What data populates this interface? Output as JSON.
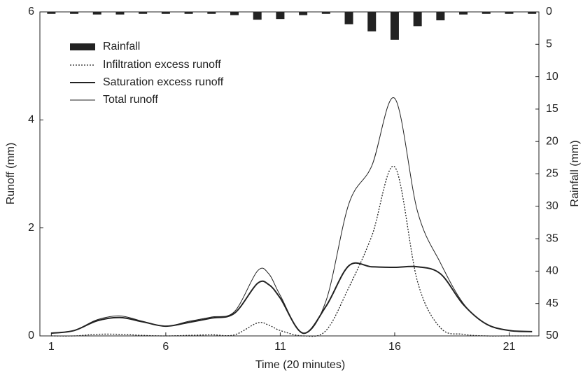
{
  "chart_data": {
    "type": "line",
    "xlabel": "Time (20 minutes)",
    "ylabel": "Runoff (mm)",
    "y2label": "Rainfall (mm)",
    "xlim": [
      0.5,
      22.3
    ],
    "xticks": [
      1,
      6,
      11,
      16,
      21
    ],
    "ylim": [
      0,
      6
    ],
    "yticks": [
      0,
      2,
      4,
      6
    ],
    "y2lim": [
      50,
      0
    ],
    "y2ticks": [
      0,
      5,
      10,
      15,
      20,
      25,
      30,
      35,
      40,
      45,
      50
    ],
    "x": [
      1,
      2,
      3,
      4,
      5,
      6,
      7,
      8,
      9,
      10,
      10.5,
      11,
      12,
      13,
      14,
      15,
      16,
      17,
      18,
      19,
      20,
      21,
      22
    ],
    "series": [
      {
        "name": "Rainfall",
        "style": "bar",
        "axis": "y2",
        "color": "#222222",
        "x": [
          1,
          2,
          3,
          4,
          5,
          6,
          7,
          8,
          9,
          10,
          11,
          12,
          13,
          14,
          15,
          16,
          17,
          18,
          19,
          20,
          21,
          22
        ],
        "values": [
          0.3,
          0.3,
          0.4,
          0.4,
          0.3,
          0.3,
          0.3,
          0.3,
          0.5,
          1.2,
          1.1,
          0.5,
          0.3,
          1.9,
          3.0,
          4.3,
          2.2,
          1.3,
          0.4,
          0.3,
          0.3,
          0.3
        ]
      },
      {
        "name": "Infiltration excess runoff",
        "style": "dotted",
        "color": "#222222",
        "values": [
          0,
          0,
          0.03,
          0.03,
          0.01,
          0,
          0.01,
          0.02,
          0.02,
          0.24,
          0.2,
          0.1,
          0,
          0.1,
          0.9,
          1.85,
          3.13,
          1.0,
          0.15,
          0.03,
          0,
          0,
          0
        ]
      },
      {
        "name": "Saturation excess runoff",
        "style": "thick",
        "color": "#222222",
        "values": [
          0.05,
          0.1,
          0.28,
          0.34,
          0.26,
          0.18,
          0.25,
          0.33,
          0.42,
          0.97,
          0.95,
          0.7,
          0.05,
          0.55,
          1.3,
          1.28,
          1.27,
          1.28,
          1.15,
          0.58,
          0.22,
          0.1,
          0.08
        ]
      },
      {
        "name": "Total runoff",
        "style": "thin",
        "color": "#222222",
        "values": [
          0.05,
          0.1,
          0.3,
          0.37,
          0.27,
          0.18,
          0.27,
          0.35,
          0.45,
          1.2,
          1.15,
          0.75,
          0.05,
          0.65,
          2.45,
          3.15,
          4.4,
          2.3,
          1.35,
          0.6,
          0.22,
          0.1,
          0.08
        ]
      }
    ]
  }
}
